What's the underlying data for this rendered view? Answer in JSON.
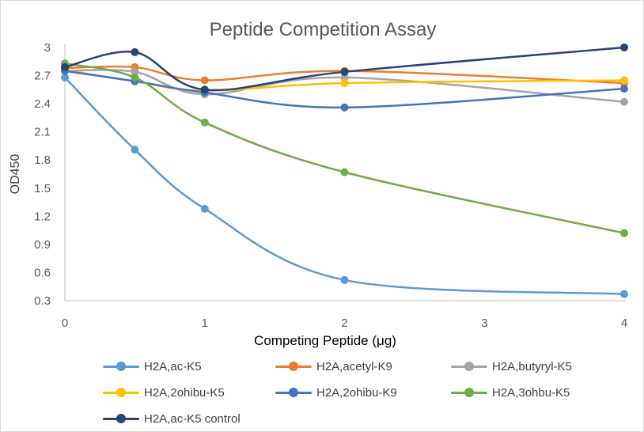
{
  "chart_data": {
    "type": "line",
    "title": "Peptide Competition Assay",
    "xlabel": "Competing Peptide (μg)",
    "ylabel": "OD450",
    "x": [
      0,
      0.5,
      1,
      2,
      4
    ],
    "xlim": [
      0,
      4
    ],
    "ylim": [
      0.3,
      3
    ],
    "x_ticks": [
      "0",
      "1",
      "2",
      "3",
      "4"
    ],
    "y_ticks": [
      "0.3",
      "0.6",
      "0.9",
      "1.2",
      "1.5",
      "1.8",
      "2.1",
      "2.4",
      "2.7",
      "3"
    ],
    "grid": false,
    "legend_position": "bottom",
    "smooth": true,
    "series": [
      {
        "name": "H2A,ac-K5",
        "color": "#5b9bd5",
        "values": [
          2.68,
          1.91,
          1.28,
          0.52,
          0.37
        ]
      },
      {
        "name": "H2A,acetyl-K9",
        "color": "#ed7d31",
        "values": [
          2.78,
          2.79,
          2.65,
          2.75,
          2.62
        ]
      },
      {
        "name": "H2A,butyryl-K5",
        "color": "#a5a5a5",
        "values": [
          2.75,
          2.74,
          2.5,
          2.68,
          2.42
        ]
      },
      {
        "name": "H2A,2ohibu-K5",
        "color": "#ffc000",
        "values": [
          2.76,
          2.64,
          2.54,
          2.62,
          2.65
        ]
      },
      {
        "name": "H2A,2ohibu-K9",
        "color": "#4472c4",
        "values": [
          2.75,
          2.64,
          2.52,
          2.36,
          2.56
        ]
      },
      {
        "name": "H2A,3ohbu-K5",
        "color": "#70ad47",
        "values": [
          2.83,
          2.68,
          2.2,
          1.67,
          1.02
        ]
      },
      {
        "name": "H2A,ac-K5 control",
        "color": "#264478",
        "values": [
          2.79,
          2.95,
          2.55,
          2.74,
          3.0
        ]
      }
    ]
  }
}
